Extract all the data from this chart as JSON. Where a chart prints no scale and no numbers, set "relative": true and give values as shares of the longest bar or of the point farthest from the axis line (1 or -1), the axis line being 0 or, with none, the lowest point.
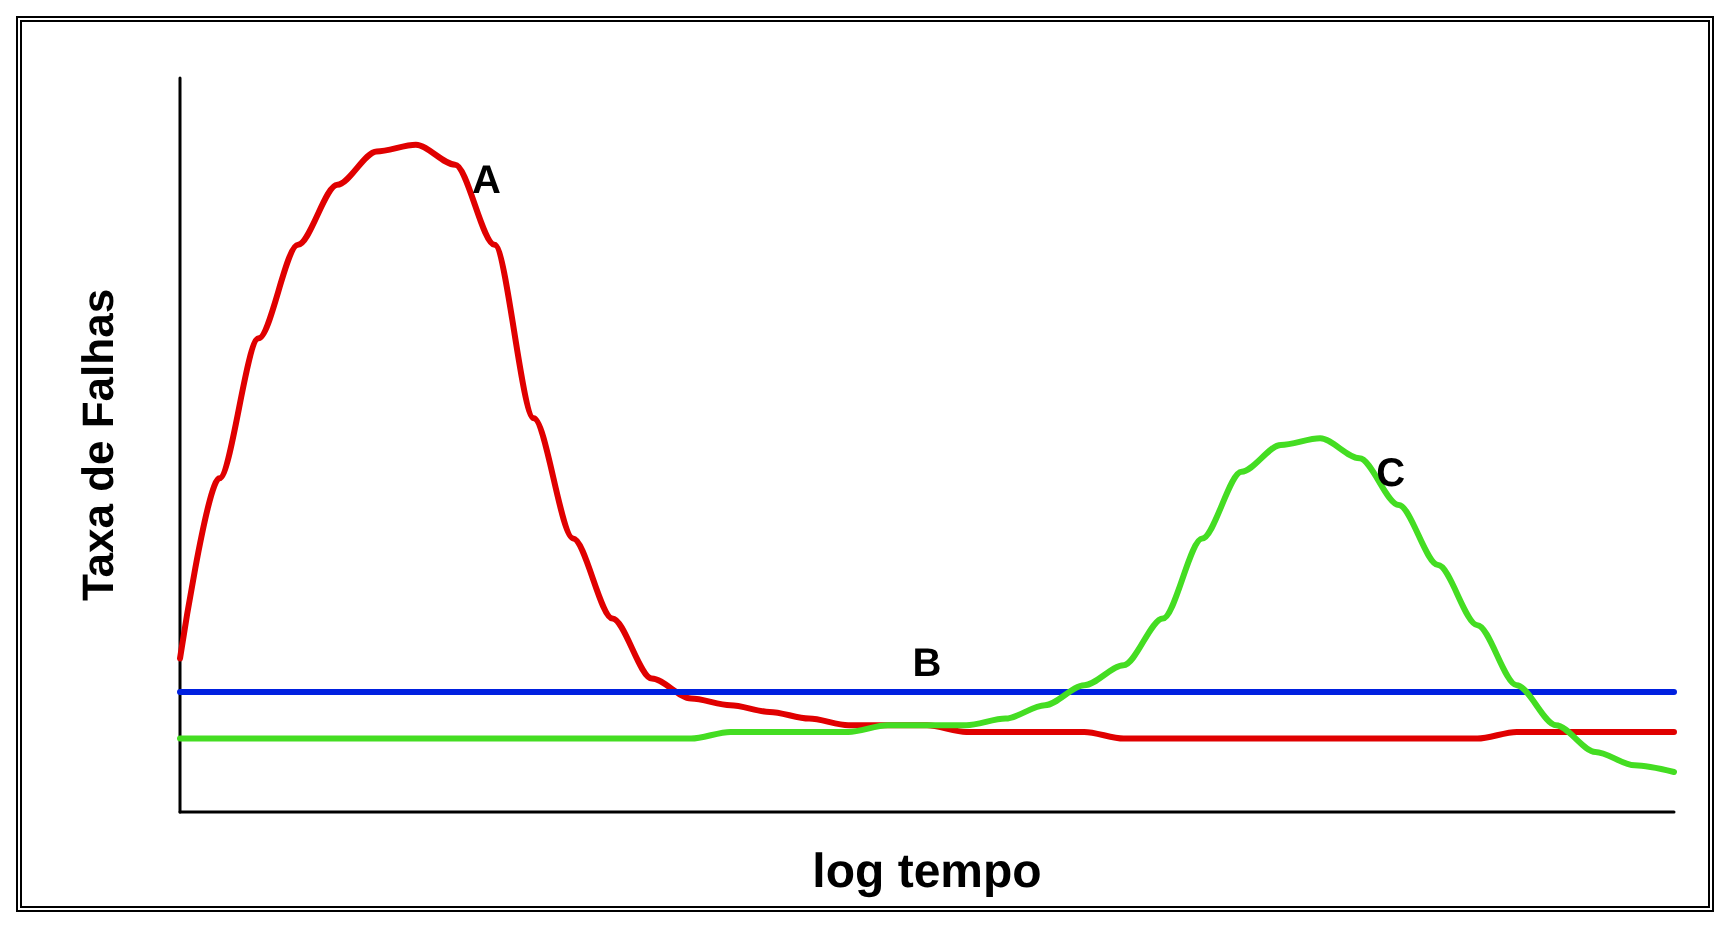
{
  "chart_data": {
    "type": "line",
    "relative": true,
    "xlabel": "log tempo",
    "ylabel": "Taxa de Falhas",
    "grid": false,
    "legend": false,
    "marker": "none",
    "line_style": "solid",
    "categories": [
      null,
      null,
      null,
      null,
      null,
      null,
      null,
      null,
      null,
      null,
      null,
      null,
      null,
      null,
      null,
      null,
      null,
      null,
      null,
      null,
      null,
      null,
      null,
      null,
      null,
      null,
      null,
      null,
      null,
      null,
      null,
      null,
      null,
      null,
      null,
      null,
      null,
      null,
      null
    ],
    "series": [
      {
        "name": "A",
        "color": "#e00000",
        "values": [
          0.23,
          0.5,
          0.71,
          0.85,
          0.94,
          0.99,
          1.0,
          0.97,
          0.85,
          0.59,
          0.41,
          0.29,
          0.2,
          0.17,
          0.16,
          0.15,
          0.14,
          0.13,
          0.13,
          0.13,
          0.12,
          0.12,
          0.12,
          0.12,
          0.11,
          0.11,
          0.11,
          0.11,
          0.11,
          0.11,
          0.11,
          0.11,
          0.11,
          0.11,
          0.12,
          0.12,
          0.12,
          0.12,
          0.12
        ]
      },
      {
        "name": "B",
        "color": "#0020e0",
        "values": [
          0.18,
          0.18,
          0.18,
          0.18,
          0.18,
          0.18,
          0.18,
          0.18,
          0.18,
          0.18,
          0.18,
          0.18,
          0.18,
          0.18,
          0.18,
          0.18,
          0.18,
          0.18,
          0.18,
          0.18,
          0.18,
          0.18,
          0.18,
          0.18,
          0.18,
          0.18,
          0.18,
          0.18,
          0.18,
          0.18,
          0.18,
          0.18,
          0.18,
          0.18,
          0.18,
          0.18,
          0.18,
          0.18,
          0.18
        ]
      },
      {
        "name": "C",
        "color": "#44dd22",
        "values": [
          0.11,
          0.11,
          0.11,
          0.11,
          0.11,
          0.11,
          0.11,
          0.11,
          0.11,
          0.11,
          0.11,
          0.11,
          0.11,
          0.11,
          0.12,
          0.12,
          0.12,
          0.12,
          0.13,
          0.13,
          0.13,
          0.14,
          0.16,
          0.19,
          0.22,
          0.29,
          0.41,
          0.51,
          0.55,
          0.56,
          0.53,
          0.46,
          0.37,
          0.28,
          0.19,
          0.13,
          0.09,
          0.07,
          0.06
        ]
      }
    ]
  }
}
